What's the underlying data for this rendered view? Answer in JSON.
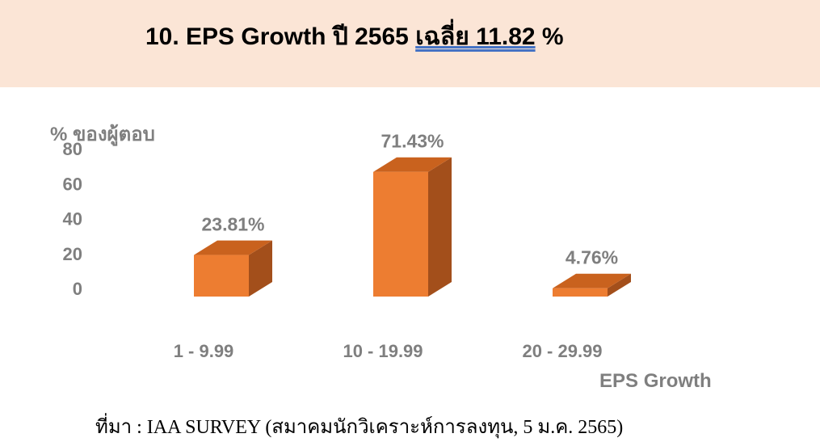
{
  "header": {
    "title_prefix": "10. EPS Growth ปี 2565 ",
    "title_underlined": "เฉลี่ย  11.82",
    "title_suffix": " %"
  },
  "chart_data": {
    "type": "bar",
    "categories": [
      "1 - 9.99",
      "10 - 19.99",
      "20 - 29.99"
    ],
    "values": [
      23.81,
      71.43,
      4.76
    ],
    "data_labels": [
      "23.81%",
      "71.43%",
      "4.76%"
    ],
    "ylabel": "% ของผู้ตอบ",
    "xlabel": "EPS Growth",
    "yticks": [
      "0",
      "20",
      "40",
      "60",
      "80"
    ],
    "ylim": [
      0,
      80
    ],
    "grid": false,
    "style": "3d-column",
    "colors": {
      "front": "#ed7d31",
      "top": "#c9621e",
      "side": "#a34f1b",
      "label": "#7f7f7f"
    }
  },
  "footer": {
    "source": "ที่มา : IAA SURVEY (สมาคมนักวิเคราะห์การลงทุน, 5 ม.ค. 2565)"
  }
}
